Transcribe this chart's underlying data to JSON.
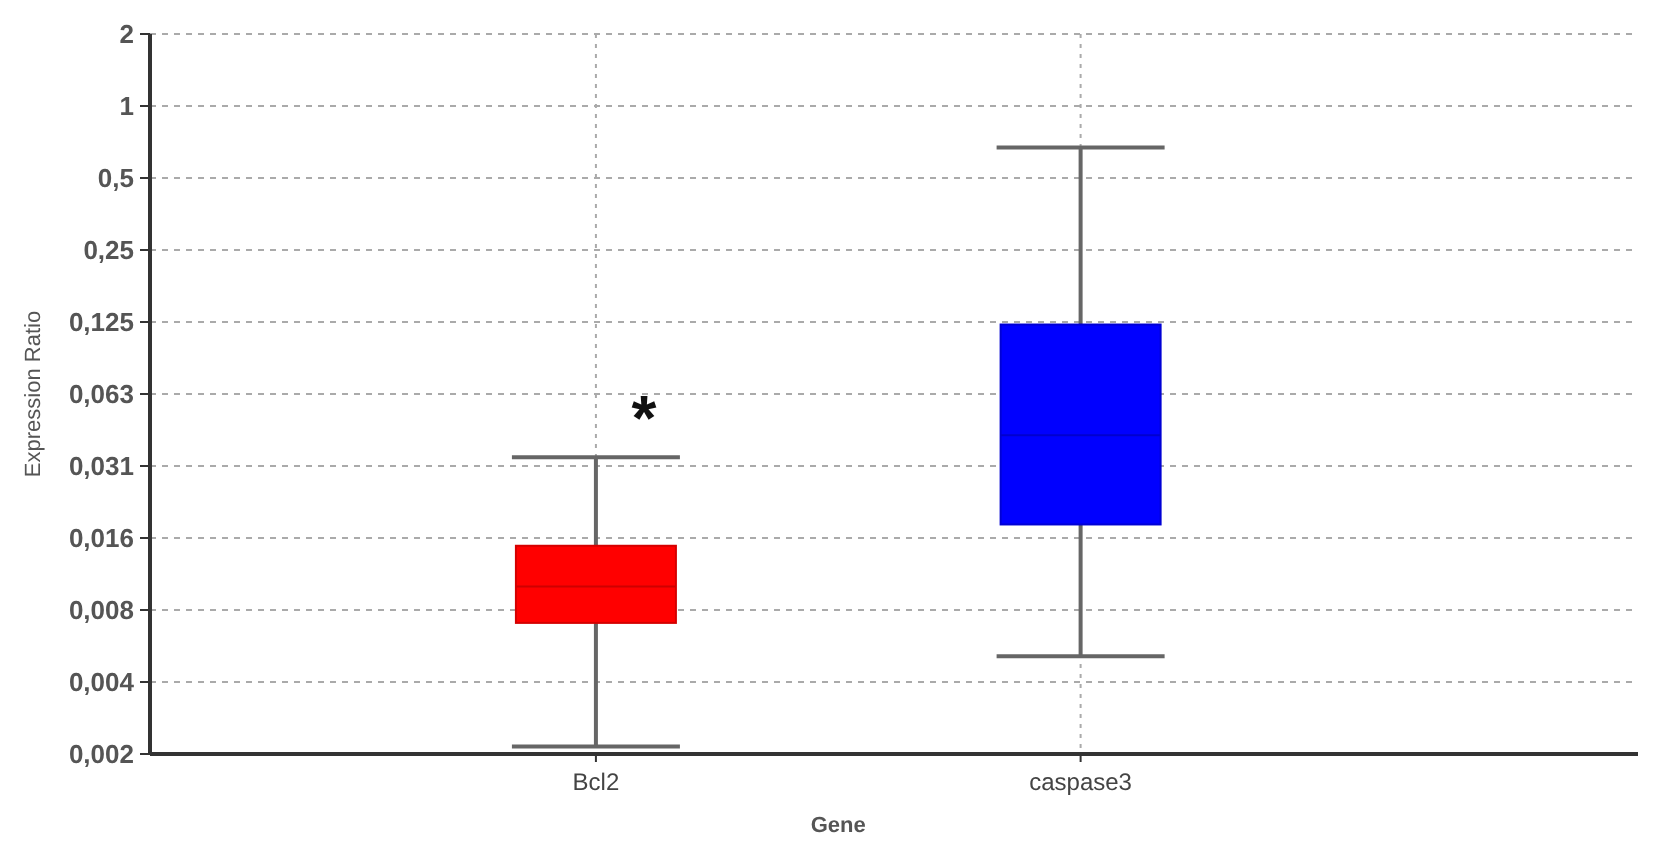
{
  "chart_data": {
    "type": "box",
    "xlabel": "Gene",
    "ylabel": "Expression Ratio",
    "categories": [
      "Bcl2",
      "caspase3"
    ],
    "colors": [
      "#ff0000",
      "#0000ff"
    ],
    "boxes": [
      {
        "low": 0.0021,
        "q1": 0.0069,
        "median": 0.0098,
        "q3": 0.0145,
        "high": 0.034
      },
      {
        "low": 0.005,
        "q1": 0.0178,
        "median": 0.042,
        "q3": 0.122,
        "high": 0.67
      }
    ],
    "log": true,
    "ylim": [
      0.001953125,
      2
    ],
    "yticks": [
      {
        "value": 0.001953125,
        "label": "0,002"
      },
      {
        "value": 0.00390625,
        "label": "0,004"
      },
      {
        "value": 0.0078125,
        "label": "0,008"
      },
      {
        "value": 0.015625,
        "label": "0,016"
      },
      {
        "value": 0.03125,
        "label": "0,031"
      },
      {
        "value": 0.0625,
        "label": "0,063"
      },
      {
        "value": 0.125,
        "label": "0,125"
      },
      {
        "value": 0.25,
        "label": "0,25"
      },
      {
        "value": 0.5,
        "label": "0,5"
      },
      1,
      2
    ],
    "grid": true,
    "annotations": [
      "*"
    ]
  }
}
